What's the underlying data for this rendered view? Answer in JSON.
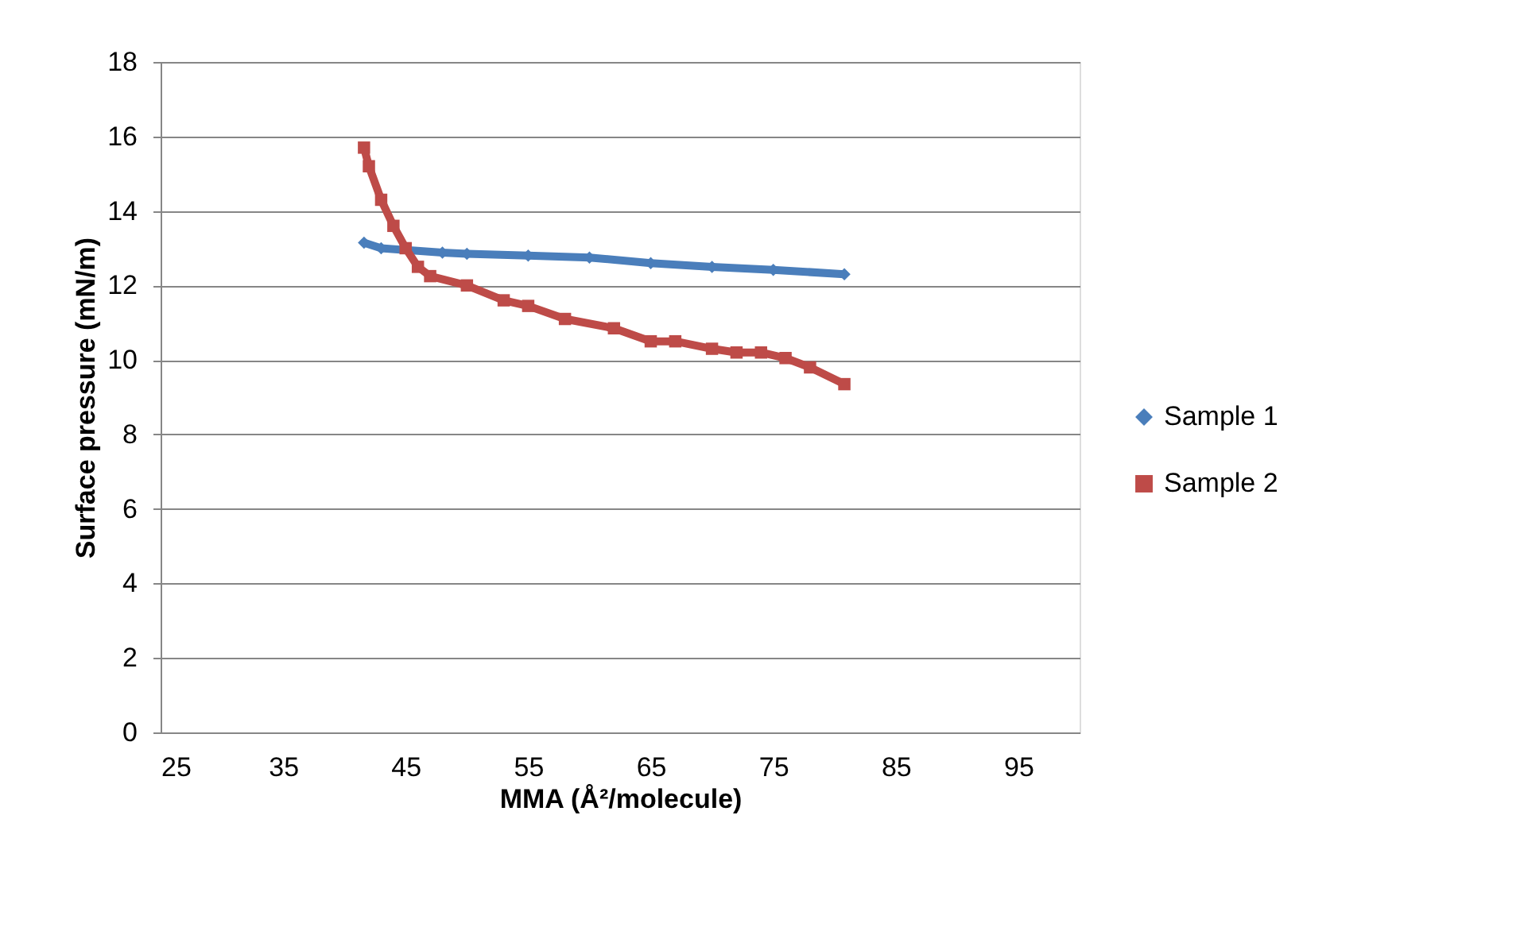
{
  "chart_data": {
    "type": "line",
    "xlabel": "MMA (Å²/molecule)",
    "ylabel": "Surface pressure (mN/m)",
    "xlim": [
      25,
      100
    ],
    "xticks": [
      25,
      35,
      45,
      55,
      65,
      75,
      85,
      95
    ],
    "ylim": [
      0,
      18
    ],
    "yticks": [
      0,
      2,
      4,
      6,
      8,
      10,
      12,
      14,
      16,
      18
    ],
    "grid": "y",
    "legend": "right",
    "series": [
      {
        "name": "Sample 1",
        "color": "#4a7ebb",
        "marker": "diamond",
        "x": [
          41.6,
          43,
          48,
          50,
          55,
          60,
          65,
          70,
          75,
          80.8
        ],
        "values": [
          13.15,
          13.0,
          12.88,
          12.85,
          12.8,
          12.75,
          12.6,
          12.5,
          12.42,
          12.3
        ]
      },
      {
        "name": "Sample 2",
        "color": "#be4b48",
        "marker": "square",
        "x": [
          41.6,
          42,
          43,
          44,
          45,
          46,
          47,
          50,
          53,
          55,
          58,
          62,
          65,
          67,
          70,
          72,
          74,
          76,
          78,
          80.8
        ],
        "values": [
          15.7,
          15.2,
          14.3,
          13.6,
          13.0,
          12.5,
          12.25,
          12.0,
          11.6,
          11.45,
          11.1,
          10.85,
          10.5,
          10.5,
          10.3,
          10.2,
          10.2,
          10.05,
          9.8,
          9.35
        ]
      }
    ]
  }
}
